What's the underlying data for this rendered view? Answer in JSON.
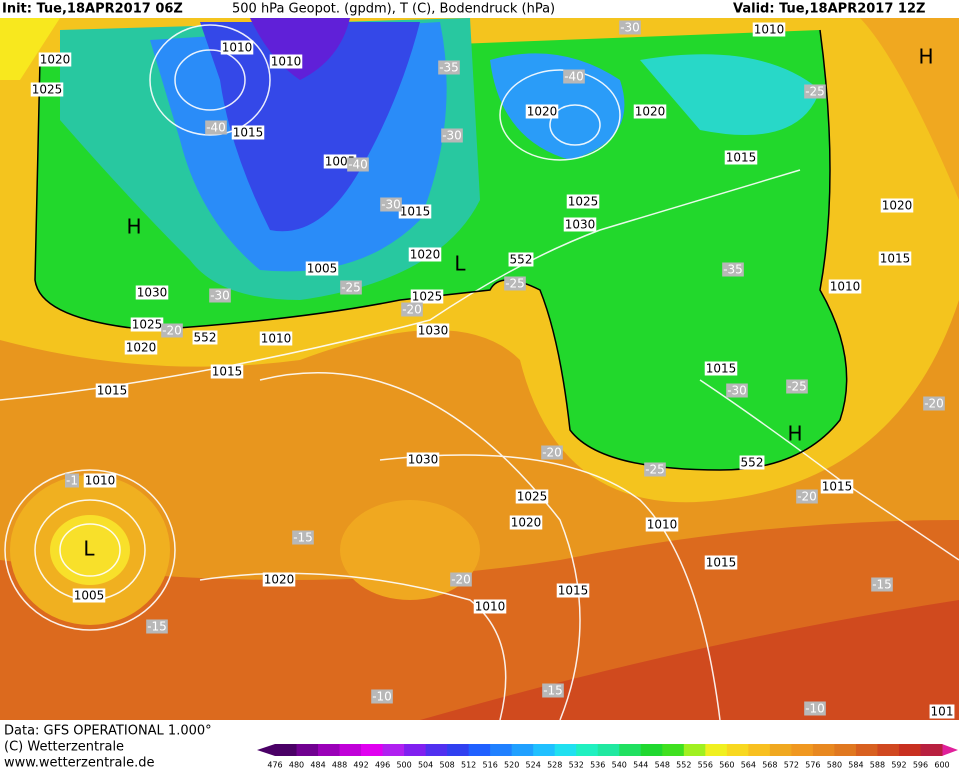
{
  "header": {
    "init": "Init: Tue,18APR2017 06Z",
    "title": "500 hPa Geopot. (gpdm), T (C), Bodendruck (hPa)",
    "valid": "Valid: Tue,18APR2017 12Z"
  },
  "map": {
    "isobar_labels": [
      "1010",
      "1010",
      "1020",
      "1025",
      "1015",
      "1005",
      "1015",
      "1005",
      "1020",
      "1030",
      "1025",
      "1020",
      "1010",
      "1015",
      "1025",
      "1030",
      "1020",
      "1020",
      "1015",
      "1010",
      "1025",
      "1030",
      "1020",
      "1015",
      "1010",
      "1015",
      "1015",
      "1015",
      "1010",
      "1005",
      "1030",
      "1025",
      "1020",
      "1010",
      "1015",
      "1015",
      "1010",
      "1020",
      "101"
    ],
    "temperature_labels": [
      "-30",
      "-35",
      "-40",
      "-40",
      "-30",
      "-40",
      "-30",
      "-35",
      "-25",
      "-25",
      "-30",
      "-20",
      "-20",
      "-25",
      "-20",
      "-25",
      "-30",
      "-25",
      "-20",
      "-20",
      "-15",
      "-20",
      "-15",
      "-15",
      "-10",
      "-15",
      "-10",
      "-1"
    ],
    "geopotential_labels": [
      "552",
      "552",
      "552"
    ],
    "pressure_centers": [
      "H",
      "H",
      "L",
      "L",
      "H"
    ]
  },
  "footer": {
    "data": "Data: GFS OPERATIONAL 1.000°",
    "copyright": "(C) Wetterzentrale",
    "url": "www.wetterzentrale.de"
  },
  "legend": {
    "ticks": [
      476,
      480,
      484,
      488,
      492,
      496,
      500,
      504,
      508,
      512,
      516,
      520,
      524,
      528,
      532,
      536,
      540,
      544,
      548,
      552,
      556,
      560,
      564,
      568,
      572,
      576,
      580,
      584,
      588,
      592,
      596,
      600
    ],
    "colors": [
      "#4a0066",
      "#700090",
      "#9a00b8",
      "#c000d8",
      "#e000f0",
      "#b020f0",
      "#8020f0",
      "#5030f0",
      "#3040f0",
      "#2060ff",
      "#2080ff",
      "#20a0ff",
      "#20c0ff",
      "#20e0f0",
      "#20f0c0",
      "#20e8a0",
      "#20e060",
      "#20d830",
      "#40e020",
      "#a0f020",
      "#f0f020",
      "#f8d820",
      "#f8c020",
      "#f0a820",
      "#f09820",
      "#e88820",
      "#e07820",
      "#d86020",
      "#d04820",
      "#c83020",
      "#b82040"
    ]
  }
}
